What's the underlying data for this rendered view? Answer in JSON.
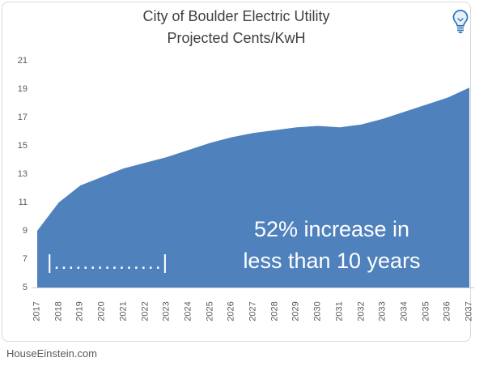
{
  "chart": {
    "title_line1": "City of Boulder Electric Utility",
    "title_line2": "Projected Cents/KwH",
    "annotation_line1": "52% increase in",
    "annotation_line2": "less than 10 years",
    "bracket_label": "|...............|",
    "footer_text": "HouseEinstein.com",
    "colors": {
      "area_fill": "#4F81BD",
      "axis_text": "#595959",
      "title_text": "#3F3F3F",
      "annotation_text": "#FFFFFF",
      "frame_border": "#D9D9D9",
      "axis_line": "#C9C9C9",
      "icon_accent": "#2E75B6"
    }
  },
  "chart_data": {
    "type": "area",
    "title": "City of Boulder Electric Utility Projected Cents/KwH",
    "categories": [
      "2017",
      "2018",
      "2019",
      "2020",
      "2021",
      "2022",
      "2023",
      "2024",
      "2025",
      "2026",
      "2027",
      "2028",
      "2029",
      "2030",
      "2031",
      "2032",
      "2033",
      "2034",
      "2035",
      "2036",
      "2037"
    ],
    "values": [
      9.0,
      11.0,
      12.2,
      12.8,
      13.4,
      13.8,
      14.2,
      14.7,
      15.2,
      15.6,
      15.9,
      16.1,
      16.3,
      16.4,
      16.3,
      16.5,
      16.9,
      17.4,
      17.9,
      18.4,
      19.1
    ],
    "xlabel": "",
    "ylabel": "",
    "ylim": [
      5,
      21
    ],
    "yticks": [
      5,
      7,
      9,
      11,
      13,
      15,
      17,
      19,
      21
    ],
    "grid": false,
    "legend": "none",
    "annotations": [
      "52% increase in less than 10 years",
      "|...............|"
    ]
  }
}
